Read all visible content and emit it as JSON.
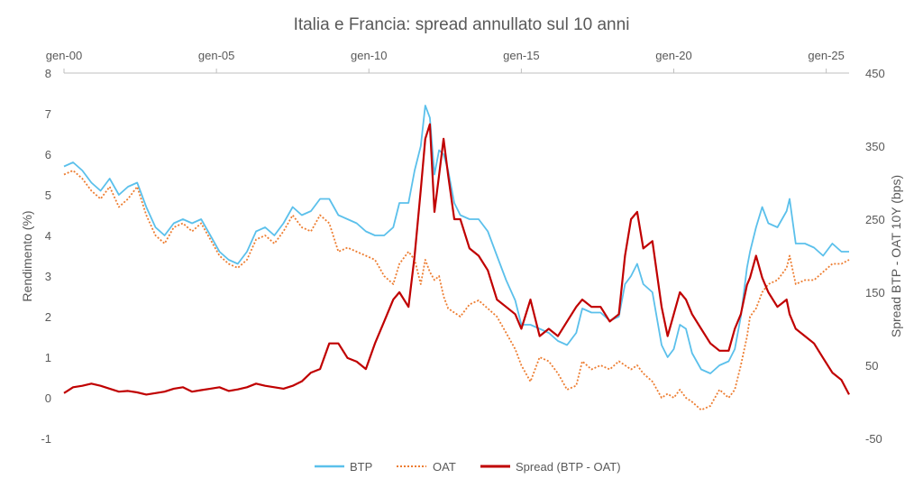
{
  "chart_data": {
    "type": "line",
    "title": "Italia e Francia: spread annullato sul 10 anni",
    "ylabel": "Rendimento (%)",
    "y2label": "Spread BTP - OAT 10Y (bps)",
    "x_ticks": [
      "gen-00",
      "gen-05",
      "gen-10",
      "gen-15",
      "gen-20",
      "gen-25"
    ],
    "xlim": [
      2000.0,
      2025.75
    ],
    "ylim": [
      -1,
      8
    ],
    "y_ticks": [
      -1,
      0,
      1,
      2,
      3,
      4,
      5,
      6,
      7,
      8
    ],
    "y2lim": [
      -50,
      450
    ],
    "y2_ticks": [
      -50,
      50,
      150,
      250,
      350,
      450
    ],
    "legend_position": "bottom",
    "grid": false,
    "series": [
      {
        "name": "BTP",
        "axis": "left",
        "color": "#5BC0EB",
        "style": "solid",
        "x": [
          2000.0,
          2000.3,
          2000.6,
          2000.9,
          2001.2,
          2001.5,
          2001.8,
          2002.1,
          2002.4,
          2002.7,
          2003.0,
          2003.3,
          2003.6,
          2003.9,
          2004.2,
          2004.5,
          2004.8,
          2005.1,
          2005.4,
          2005.7,
          2006.0,
          2006.3,
          2006.6,
          2006.9,
          2007.2,
          2007.5,
          2007.8,
          2008.1,
          2008.4,
          2008.7,
          2009.0,
          2009.3,
          2009.6,
          2009.9,
          2010.2,
          2010.5,
          2010.8,
          2011.0,
          2011.3,
          2011.5,
          2011.7,
          2011.85,
          2012.0,
          2012.15,
          2012.3,
          2012.45,
          2012.6,
          2012.8,
          2013.0,
          2013.3,
          2013.6,
          2013.9,
          2014.2,
          2014.5,
          2014.8,
          2015.0,
          2015.3,
          2015.6,
          2015.9,
          2016.2,
          2016.5,
          2016.8,
          2017.0,
          2017.3,
          2017.6,
          2017.9,
          2018.2,
          2018.4,
          2018.6,
          2018.8,
          2019.0,
          2019.3,
          2019.6,
          2019.8,
          2020.0,
          2020.2,
          2020.4,
          2020.6,
          2020.9,
          2021.2,
          2021.5,
          2021.8,
          2022.0,
          2022.2,
          2022.4,
          2022.5,
          2022.7,
          2022.9,
          2023.1,
          2023.4,
          2023.7,
          2023.8,
          2024.0,
          2024.3,
          2024.6,
          2024.9,
          2025.2,
          2025.5,
          2025.75
        ],
        "y": [
          5.7,
          5.8,
          5.6,
          5.3,
          5.1,
          5.4,
          5.0,
          5.2,
          5.3,
          4.7,
          4.2,
          4.0,
          4.3,
          4.4,
          4.3,
          4.4,
          4.0,
          3.6,
          3.4,
          3.3,
          3.6,
          4.1,
          4.2,
          4.0,
          4.3,
          4.7,
          4.5,
          4.6,
          4.9,
          4.9,
          4.5,
          4.4,
          4.3,
          4.1,
          4.0,
          4.0,
          4.2,
          4.8,
          4.8,
          5.6,
          6.2,
          7.2,
          6.9,
          5.5,
          6.1,
          6.0,
          5.6,
          4.8,
          4.5,
          4.4,
          4.4,
          4.1,
          3.5,
          2.9,
          2.4,
          1.8,
          1.8,
          1.7,
          1.6,
          1.4,
          1.3,
          1.6,
          2.2,
          2.1,
          2.1,
          1.9,
          2.0,
          2.8,
          3.0,
          3.3,
          2.8,
          2.6,
          1.3,
          1.0,
          1.2,
          1.8,
          1.7,
          1.1,
          0.7,
          0.6,
          0.8,
          0.9,
          1.2,
          2.0,
          3.2,
          3.6,
          4.2,
          4.7,
          4.3,
          4.2,
          4.6,
          4.9,
          3.8,
          3.8,
          3.7,
          3.5,
          3.8,
          3.6,
          3.6
        ]
      },
      {
        "name": "OAT",
        "axis": "left",
        "color": "#ED7D31",
        "style": "dotted",
        "x": [
          2000.0,
          2000.3,
          2000.6,
          2000.9,
          2001.2,
          2001.5,
          2001.8,
          2002.1,
          2002.4,
          2002.7,
          2003.0,
          2003.3,
          2003.6,
          2003.9,
          2004.2,
          2004.5,
          2004.8,
          2005.1,
          2005.4,
          2005.7,
          2006.0,
          2006.3,
          2006.6,
          2006.9,
          2007.2,
          2007.5,
          2007.8,
          2008.1,
          2008.4,
          2008.7,
          2009.0,
          2009.3,
          2009.6,
          2009.9,
          2010.2,
          2010.5,
          2010.8,
          2011.0,
          2011.3,
          2011.5,
          2011.7,
          2011.85,
          2012.0,
          2012.15,
          2012.3,
          2012.45,
          2012.6,
          2012.8,
          2013.0,
          2013.3,
          2013.6,
          2013.9,
          2014.2,
          2014.5,
          2014.8,
          2015.0,
          2015.3,
          2015.6,
          2015.9,
          2016.2,
          2016.5,
          2016.8,
          2017.0,
          2017.3,
          2017.6,
          2017.9,
          2018.2,
          2018.4,
          2018.6,
          2018.8,
          2019.0,
          2019.3,
          2019.6,
          2019.8,
          2020.0,
          2020.2,
          2020.4,
          2020.6,
          2020.9,
          2021.2,
          2021.5,
          2021.8,
          2022.0,
          2022.2,
          2022.4,
          2022.5,
          2022.7,
          2022.9,
          2023.1,
          2023.4,
          2023.7,
          2023.8,
          2024.0,
          2024.3,
          2024.6,
          2024.9,
          2025.2,
          2025.5,
          2025.75
        ],
        "y": [
          5.5,
          5.6,
          5.4,
          5.1,
          4.9,
          5.2,
          4.7,
          4.9,
          5.2,
          4.5,
          4.0,
          3.8,
          4.2,
          4.3,
          4.1,
          4.3,
          3.9,
          3.5,
          3.3,
          3.2,
          3.4,
          3.9,
          4.0,
          3.8,
          4.1,
          4.5,
          4.2,
          4.1,
          4.5,
          4.3,
          3.6,
          3.7,
          3.6,
          3.5,
          3.4,
          3.0,
          2.8,
          3.3,
          3.6,
          3.4,
          2.8,
          3.4,
          3.1,
          2.9,
          3.0,
          2.5,
          2.2,
          2.1,
          2.0,
          2.3,
          2.4,
          2.2,
          2.0,
          1.6,
          1.2,
          0.8,
          0.4,
          1.0,
          0.9,
          0.6,
          0.2,
          0.3,
          0.9,
          0.7,
          0.8,
          0.7,
          0.9,
          0.8,
          0.7,
          0.8,
          0.6,
          0.4,
          0.0,
          0.1,
          0.0,
          0.2,
          0.0,
          -0.1,
          -0.3,
          -0.2,
          0.2,
          0.0,
          0.2,
          0.8,
          1.5,
          2.0,
          2.2,
          2.6,
          2.8,
          2.9,
          3.2,
          3.5,
          2.8,
          2.9,
          2.9,
          3.1,
          3.3,
          3.3,
          3.4
        ]
      },
      {
        "name": "Spread (BTP - OAT)",
        "axis": "right",
        "color": "#C00000",
        "style": "solid",
        "x": [
          2000.0,
          2000.3,
          2000.6,
          2000.9,
          2001.2,
          2001.5,
          2001.8,
          2002.1,
          2002.4,
          2002.7,
          2003.0,
          2003.3,
          2003.6,
          2003.9,
          2004.2,
          2004.5,
          2004.8,
          2005.1,
          2005.4,
          2005.7,
          2006.0,
          2006.3,
          2006.6,
          2006.9,
          2007.2,
          2007.5,
          2007.8,
          2008.1,
          2008.4,
          2008.7,
          2009.0,
          2009.3,
          2009.6,
          2009.9,
          2010.2,
          2010.5,
          2010.8,
          2011.0,
          2011.3,
          2011.5,
          2011.7,
          2011.85,
          2012.0,
          2012.15,
          2012.3,
          2012.45,
          2012.6,
          2012.8,
          2013.0,
          2013.3,
          2013.6,
          2013.9,
          2014.2,
          2014.5,
          2014.8,
          2015.0,
          2015.3,
          2015.6,
          2015.9,
          2016.2,
          2016.5,
          2016.8,
          2017.0,
          2017.3,
          2017.6,
          2017.9,
          2018.2,
          2018.4,
          2018.6,
          2018.8,
          2019.0,
          2019.3,
          2019.6,
          2019.8,
          2020.0,
          2020.2,
          2020.4,
          2020.6,
          2020.9,
          2021.2,
          2021.5,
          2021.8,
          2022.0,
          2022.2,
          2022.4,
          2022.5,
          2022.7,
          2022.9,
          2023.1,
          2023.4,
          2023.7,
          2023.8,
          2024.0,
          2024.3,
          2024.6,
          2024.9,
          2025.2,
          2025.5,
          2025.75
        ],
        "y": [
          12,
          20,
          22,
          25,
          22,
          18,
          14,
          15,
          13,
          10,
          12,
          14,
          18,
          20,
          14,
          16,
          18,
          20,
          15,
          17,
          20,
          25,
          22,
          20,
          18,
          22,
          28,
          40,
          45,
          80,
          80,
          60,
          55,
          45,
          80,
          110,
          140,
          150,
          130,
          200,
          290,
          360,
          380,
          260,
          310,
          360,
          310,
          250,
          250,
          210,
          200,
          180,
          140,
          130,
          120,
          100,
          140,
          90,
          100,
          90,
          110,
          130,
          140,
          130,
          130,
          110,
          120,
          200,
          250,
          260,
          210,
          220,
          130,
          90,
          120,
          150,
          140,
          120,
          100,
          80,
          70,
          70,
          100,
          120,
          160,
          170,
          200,
          170,
          150,
          130,
          140,
          120,
          100,
          90,
          80,
          60,
          40,
          30,
          10
        ]
      }
    ]
  }
}
